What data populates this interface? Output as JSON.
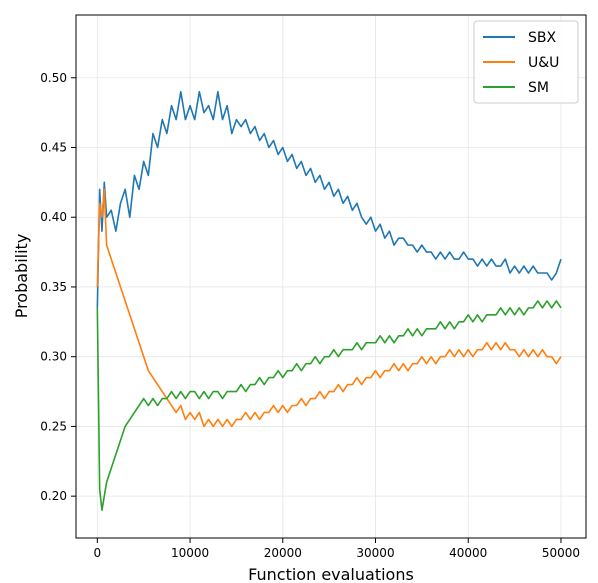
{
  "chart_data": {
    "type": "line",
    "title": "",
    "xlabel": "Function evaluations",
    "ylabel": "Probability",
    "xlim": [
      -2300,
      52700
    ],
    "ylim": [
      0.17,
      0.545
    ],
    "xticks": [
      0,
      10000,
      20000,
      30000,
      40000,
      50000
    ],
    "yticks": [
      0.2,
      0.25,
      0.3,
      0.35,
      0.4,
      0.45,
      0.5
    ],
    "xtick_labels": [
      "0",
      "10000",
      "20000",
      "30000",
      "40000",
      "50000"
    ],
    "ytick_labels": [
      "0.20",
      "0.25",
      "0.30",
      "0.35",
      "0.40",
      "0.45",
      "0.50"
    ],
    "grid": true,
    "legend_position": "top-right",
    "series": [
      {
        "name": "SBX",
        "color": "#1f77b4",
        "x": [
          0,
          250,
          500,
          750,
          1000,
          1500,
          2000,
          2500,
          3000,
          3500,
          4000,
          4500,
          5000,
          5500,
          6000,
          6500,
          7000,
          7500,
          8000,
          8500,
          9000,
          9500,
          10000,
          10500,
          11000,
          11500,
          12000,
          12500,
          13000,
          13500,
          14000,
          14500,
          15000,
          15500,
          16000,
          16500,
          17000,
          17500,
          18000,
          18500,
          19000,
          19500,
          20000,
          20500,
          21000,
          21500,
          22000,
          22500,
          23000,
          23500,
          24000,
          24500,
          25000,
          25500,
          26000,
          26500,
          27000,
          27500,
          28000,
          28500,
          29000,
          29500,
          30000,
          30500,
          31000,
          31500,
          32000,
          32500,
          33000,
          33500,
          34000,
          34500,
          35000,
          35500,
          36000,
          36500,
          37000,
          37500,
          38000,
          38500,
          39000,
          39500,
          40000,
          40500,
          41000,
          41500,
          42000,
          42500,
          43000,
          43500,
          44000,
          44500,
          45000,
          45500,
          46000,
          46500,
          47000,
          47500,
          48000,
          48500,
          49000,
          49500,
          50000
        ],
        "y": [
          0.335,
          0.42,
          0.39,
          0.425,
          0.4,
          0.405,
          0.39,
          0.41,
          0.42,
          0.4,
          0.43,
          0.42,
          0.44,
          0.43,
          0.46,
          0.45,
          0.47,
          0.46,
          0.48,
          0.47,
          0.49,
          0.47,
          0.48,
          0.47,
          0.49,
          0.475,
          0.48,
          0.47,
          0.49,
          0.47,
          0.48,
          0.46,
          0.47,
          0.465,
          0.47,
          0.46,
          0.465,
          0.455,
          0.46,
          0.45,
          0.455,
          0.445,
          0.45,
          0.44,
          0.445,
          0.435,
          0.44,
          0.43,
          0.435,
          0.425,
          0.43,
          0.42,
          0.425,
          0.415,
          0.42,
          0.41,
          0.415,
          0.405,
          0.41,
          0.4,
          0.395,
          0.4,
          0.39,
          0.395,
          0.385,
          0.39,
          0.38,
          0.385,
          0.385,
          0.38,
          0.38,
          0.375,
          0.38,
          0.375,
          0.375,
          0.37,
          0.375,
          0.37,
          0.375,
          0.37,
          0.37,
          0.375,
          0.37,
          0.37,
          0.365,
          0.37,
          0.365,
          0.37,
          0.365,
          0.365,
          0.37,
          0.36,
          0.365,
          0.36,
          0.365,
          0.36,
          0.365,
          0.36,
          0.36,
          0.36,
          0.355,
          0.36,
          0.37
        ]
      },
      {
        "name": "U&U",
        "color": "#ff7f0e",
        "x": [
          0,
          250,
          500,
          750,
          1000,
          1500,
          2000,
          2500,
          3000,
          3500,
          4000,
          4500,
          5000,
          5500,
          6000,
          6500,
          7000,
          7500,
          8000,
          8500,
          9000,
          9500,
          10000,
          10500,
          11000,
          11500,
          12000,
          12500,
          13000,
          13500,
          14000,
          14500,
          15000,
          15500,
          16000,
          16500,
          17000,
          17500,
          18000,
          18500,
          19000,
          19500,
          20000,
          20500,
          21000,
          21500,
          22000,
          22500,
          23000,
          23500,
          24000,
          24500,
          25000,
          25500,
          26000,
          26500,
          27000,
          27500,
          28000,
          28500,
          29000,
          29500,
          30000,
          30500,
          31000,
          31500,
          32000,
          32500,
          33000,
          33500,
          34000,
          34500,
          35000,
          35500,
          36000,
          36500,
          37000,
          37500,
          38000,
          38500,
          39000,
          39500,
          40000,
          40500,
          41000,
          41500,
          42000,
          42500,
          43000,
          43500,
          44000,
          44500,
          45000,
          45500,
          46000,
          46500,
          47000,
          47500,
          48000,
          48500,
          49000,
          49500,
          50000
        ],
        "y": [
          0.35,
          0.41,
          0.4,
          0.42,
          0.38,
          0.37,
          0.36,
          0.35,
          0.34,
          0.33,
          0.32,
          0.31,
          0.3,
          0.29,
          0.285,
          0.28,
          0.275,
          0.27,
          0.265,
          0.26,
          0.265,
          0.255,
          0.26,
          0.255,
          0.26,
          0.25,
          0.255,
          0.25,
          0.255,
          0.25,
          0.255,
          0.25,
          0.255,
          0.255,
          0.26,
          0.255,
          0.26,
          0.255,
          0.26,
          0.26,
          0.265,
          0.26,
          0.265,
          0.26,
          0.265,
          0.265,
          0.27,
          0.265,
          0.27,
          0.27,
          0.275,
          0.27,
          0.275,
          0.275,
          0.28,
          0.275,
          0.28,
          0.28,
          0.285,
          0.28,
          0.285,
          0.285,
          0.29,
          0.285,
          0.29,
          0.29,
          0.295,
          0.29,
          0.295,
          0.29,
          0.295,
          0.295,
          0.3,
          0.295,
          0.3,
          0.295,
          0.3,
          0.3,
          0.305,
          0.3,
          0.305,
          0.3,
          0.305,
          0.3,
          0.305,
          0.305,
          0.31,
          0.305,
          0.31,
          0.305,
          0.31,
          0.305,
          0.305,
          0.3,
          0.305,
          0.3,
          0.305,
          0.3,
          0.305,
          0.3,
          0.3,
          0.295,
          0.3
        ]
      },
      {
        "name": "SM",
        "color": "#2ca02c",
        "x": [
          0,
          250,
          500,
          750,
          1000,
          1500,
          2000,
          2500,
          3000,
          3500,
          4000,
          4500,
          5000,
          5500,
          6000,
          6500,
          7000,
          7500,
          8000,
          8500,
          9000,
          9500,
          10000,
          10500,
          11000,
          11500,
          12000,
          12500,
          13000,
          13500,
          14000,
          14500,
          15000,
          15500,
          16000,
          16500,
          17000,
          17500,
          18000,
          18500,
          19000,
          19500,
          20000,
          20500,
          21000,
          21500,
          22000,
          22500,
          23000,
          23500,
          24000,
          24500,
          25000,
          25500,
          26000,
          26500,
          27000,
          27500,
          28000,
          28500,
          29000,
          29500,
          30000,
          30500,
          31000,
          31500,
          32000,
          32500,
          33000,
          33500,
          34000,
          34500,
          35000,
          35500,
          36000,
          36500,
          37000,
          37500,
          38000,
          38500,
          39000,
          39500,
          40000,
          40500,
          41000,
          41500,
          42000,
          42500,
          43000,
          43500,
          44000,
          44500,
          45000,
          45500,
          46000,
          46500,
          47000,
          47500,
          48000,
          48500,
          49000,
          49500,
          50000
        ],
        "y": [
          0.335,
          0.205,
          0.19,
          0.2,
          0.21,
          0.22,
          0.23,
          0.24,
          0.25,
          0.255,
          0.26,
          0.265,
          0.27,
          0.265,
          0.27,
          0.265,
          0.27,
          0.27,
          0.275,
          0.27,
          0.275,
          0.27,
          0.275,
          0.275,
          0.27,
          0.275,
          0.27,
          0.275,
          0.275,
          0.27,
          0.275,
          0.275,
          0.275,
          0.28,
          0.275,
          0.28,
          0.28,
          0.285,
          0.28,
          0.285,
          0.285,
          0.29,
          0.285,
          0.29,
          0.29,
          0.295,
          0.29,
          0.295,
          0.295,
          0.3,
          0.295,
          0.3,
          0.3,
          0.305,
          0.3,
          0.305,
          0.305,
          0.305,
          0.31,
          0.305,
          0.31,
          0.31,
          0.31,
          0.315,
          0.31,
          0.315,
          0.31,
          0.315,
          0.315,
          0.32,
          0.315,
          0.32,
          0.315,
          0.32,
          0.32,
          0.32,
          0.325,
          0.32,
          0.325,
          0.32,
          0.325,
          0.325,
          0.33,
          0.325,
          0.33,
          0.325,
          0.33,
          0.33,
          0.33,
          0.335,
          0.33,
          0.335,
          0.33,
          0.335,
          0.33,
          0.335,
          0.335,
          0.34,
          0.335,
          0.34,
          0.335,
          0.34,
          0.335
        ]
      }
    ]
  }
}
